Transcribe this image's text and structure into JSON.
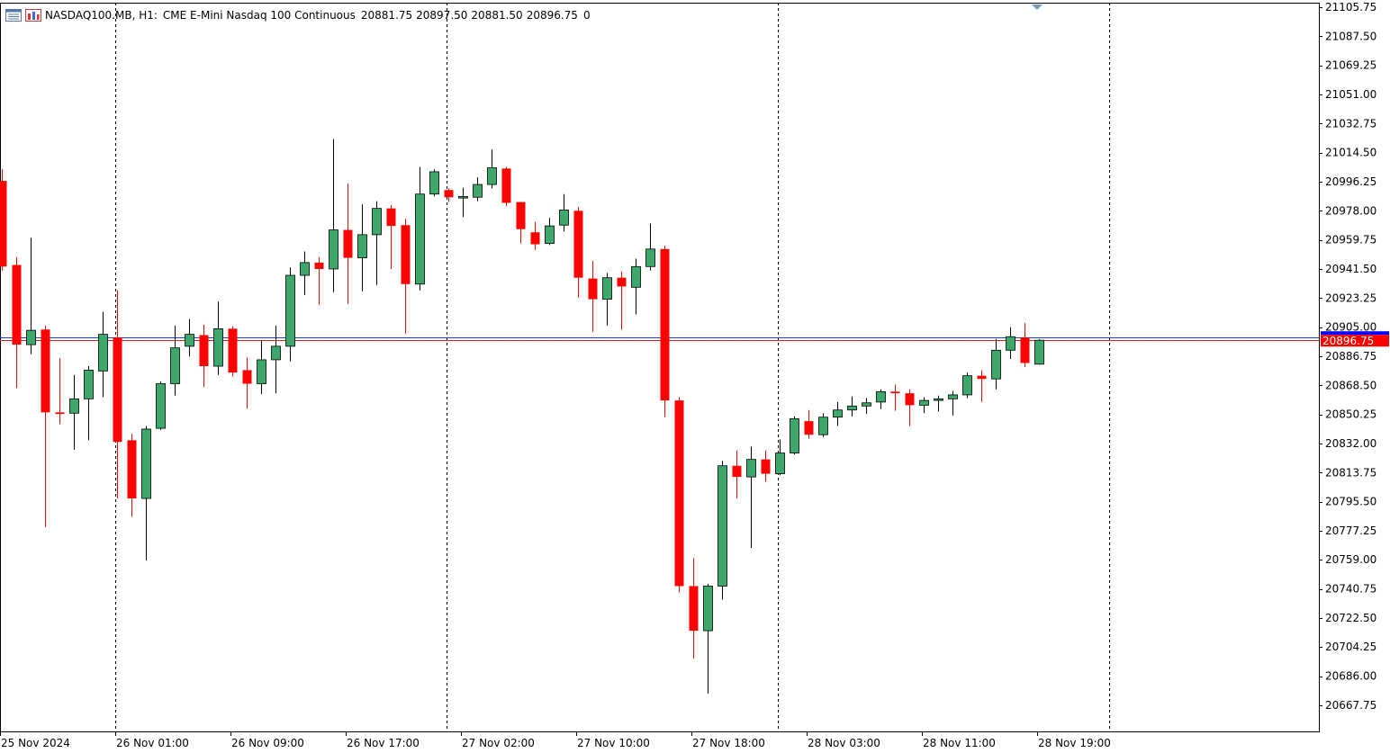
{
  "header": {
    "symbol": "NASDAQ100.MB, H1:",
    "description": "CME E-Mini Nasdaq 100 Continuous",
    "open": "20881.75",
    "high": "20897.50",
    "low": "20881.50",
    "close": "20896.75",
    "volume": "0",
    "icons": [
      "chart-window-icon",
      "symbol-info-icon"
    ]
  },
  "colors": {
    "bull": "#3ca86b",
    "bear": "#ff0000",
    "grid": "#000000",
    "bid_line": "#1f3fd0",
    "ask_line": "#d02020",
    "price_label_bg": "#ff0000",
    "price_label_top": "#0000ff"
  },
  "current_price_label": "20896.75",
  "chart_data": {
    "type": "candlestick",
    "title": "",
    "timeframe": "H1",
    "y_axis": {
      "min": 20650.75,
      "max": 21105.75,
      "tick_labels": [
        "21105.75",
        "21087.50",
        "21069.25",
        "21051.00",
        "21032.75",
        "21014.50",
        "20996.25",
        "20978.00",
        "20959.75",
        "20941.50",
        "20923.25",
        "20905.00",
        "20886.75",
        "20868.50",
        "20850.25",
        "20832.00",
        "20813.75",
        "20795.50",
        "20777.25",
        "20759.00",
        "20740.75",
        "20722.50",
        "20704.25",
        "20686.00",
        "20667.75"
      ]
    },
    "x_axis": {
      "tick_labels": [
        "25 Nov 2024",
        "26 Nov 01:00",
        "26 Nov 09:00",
        "26 Nov 17:00",
        "27 Nov 02:00",
        "27 Nov 10:00",
        "27 Nov 18:00",
        "28 Nov 03:00",
        "28 Nov 11:00",
        "28 Nov 19:00"
      ],
      "day_separators": [
        "26 Nov 00:00",
        "27 Nov 00:00",
        "28 Nov 00:00",
        "29 Nov 00:00"
      ]
    },
    "horizontal_lines": [
      {
        "name": "ask",
        "value": 20898.75
      },
      {
        "name": "bid",
        "value": 20896.75
      }
    ],
    "candles": [
      {
        "o": 20996.75,
        "h": 21004.0,
        "l": 20940.5,
        "c": 20943.0
      },
      {
        "o": 20944.0,
        "h": 20949.0,
        "l": 20866.75,
        "c": 20894.0
      },
      {
        "o": 20894.0,
        "h": 20961.0,
        "l": 20888.0,
        "c": 20903.0
      },
      {
        "o": 20903.5,
        "h": 20906.0,
        "l": 20779.5,
        "c": 20851.5
      },
      {
        "o": 20851.5,
        "h": 20885.5,
        "l": 20844.0,
        "c": 20850.5
      },
      {
        "o": 20851.0,
        "h": 20875.0,
        "l": 20828.0,
        "c": 20860.0
      },
      {
        "o": 20860.0,
        "h": 20880.5,
        "l": 20834.0,
        "c": 20878.0
      },
      {
        "o": 20877.5,
        "h": 20914.5,
        "l": 20861.0,
        "c": 20900.5
      },
      {
        "o": 20898.5,
        "h": 20928.0,
        "l": 20797.5,
        "c": 20833.0
      },
      {
        "o": 20834.0,
        "h": 20838.0,
        "l": 20786.0,
        "c": 20797.5
      },
      {
        "o": 20797.5,
        "h": 20843.0,
        "l": 20758.5,
        "c": 20841.0
      },
      {
        "o": 20841.5,
        "h": 20871.0,
        "l": 20840.5,
        "c": 20869.5
      },
      {
        "o": 20869.5,
        "h": 20906.0,
        "l": 20862.0,
        "c": 20892.0
      },
      {
        "o": 20893.0,
        "h": 20910.0,
        "l": 20886.5,
        "c": 20900.5
      },
      {
        "o": 20900.0,
        "h": 20906.5,
        "l": 20867.5,
        "c": 20880.5
      },
      {
        "o": 20880.5,
        "h": 20921.0,
        "l": 20875.0,
        "c": 20904.0
      },
      {
        "o": 20904.0,
        "h": 20905.5,
        "l": 20874.0,
        "c": 20876.5
      },
      {
        "o": 20878.0,
        "h": 20886.0,
        "l": 20854.0,
        "c": 20869.5
      },
      {
        "o": 20869.5,
        "h": 20896.5,
        "l": 20863.0,
        "c": 20884.5
      },
      {
        "o": 20884.5,
        "h": 20906.0,
        "l": 20863.5,
        "c": 20893.0
      },
      {
        "o": 20893.0,
        "h": 20942.5,
        "l": 20883.5,
        "c": 20937.5
      },
      {
        "o": 20937.5,
        "h": 20952.5,
        "l": 20925.0,
        "c": 20945.5
      },
      {
        "o": 20945.5,
        "h": 20949.0,
        "l": 20919.0,
        "c": 20941.5
      },
      {
        "o": 20941.5,
        "h": 21023.0,
        "l": 20927.0,
        "c": 20966.0
      },
      {
        "o": 20966.0,
        "h": 20995.0,
        "l": 20919.5,
        "c": 20948.5
      },
      {
        "o": 20948.5,
        "h": 20982.0,
        "l": 20927.5,
        "c": 20963.0
      },
      {
        "o": 20963.0,
        "h": 20984.0,
        "l": 20931.5,
        "c": 20979.5
      },
      {
        "o": 20979.5,
        "h": 20981.5,
        "l": 20941.5,
        "c": 20968.5
      },
      {
        "o": 20969.0,
        "h": 20973.0,
        "l": 20901.0,
        "c": 20932.0
      },
      {
        "o": 20932.0,
        "h": 21005.5,
        "l": 20928.0,
        "c": 20988.5
      },
      {
        "o": 20988.5,
        "h": 21004.0,
        "l": 20987.0,
        "c": 21002.5
      },
      {
        "o": 20991.0,
        "h": 20992.0,
        "l": 20983.5,
        "c": 20986.5
      },
      {
        "o": 20986.0,
        "h": 20992.5,
        "l": 20974.0,
        "c": 20987.0
      },
      {
        "o": 20986.5,
        "h": 20999.0,
        "l": 20984.0,
        "c": 20994.5
      },
      {
        "o": 20994.5,
        "h": 21016.5,
        "l": 20992.0,
        "c": 21005.0
      },
      {
        "o": 21004.5,
        "h": 21005.5,
        "l": 20981.0,
        "c": 20983.0
      },
      {
        "o": 20983.5,
        "h": 20983.5,
        "l": 20957.5,
        "c": 20966.5
      },
      {
        "o": 20964.5,
        "h": 20971.0,
        "l": 20953.5,
        "c": 20957.0
      },
      {
        "o": 20957.5,
        "h": 20973.5,
        "l": 20956.5,
        "c": 20968.5
      },
      {
        "o": 20969.0,
        "h": 20988.5,
        "l": 20965.0,
        "c": 20978.5
      },
      {
        "o": 20978.0,
        "h": 20980.5,
        "l": 20923.5,
        "c": 20936.0
      },
      {
        "o": 20935.5,
        "h": 20946.5,
        "l": 20902.0,
        "c": 20922.5
      },
      {
        "o": 20922.5,
        "h": 20939.0,
        "l": 20906.0,
        "c": 20936.0
      },
      {
        "o": 20936.0,
        "h": 20940.0,
        "l": 20903.5,
        "c": 20930.5
      },
      {
        "o": 20930.0,
        "h": 20948.0,
        "l": 20913.0,
        "c": 20943.0
      },
      {
        "o": 20943.0,
        "h": 20970.0,
        "l": 20940.5,
        "c": 20954.0
      },
      {
        "o": 20954.0,
        "h": 20956.0,
        "l": 20848.5,
        "c": 20859.0
      },
      {
        "o": 20859.0,
        "h": 20861.0,
        "l": 20738.5,
        "c": 20742.5
      },
      {
        "o": 20742.5,
        "h": 20760.0,
        "l": 20697.0,
        "c": 20714.5
      },
      {
        "o": 20714.5,
        "h": 20744.0,
        "l": 20675.0,
        "c": 20742.5
      },
      {
        "o": 20742.5,
        "h": 20821.0,
        "l": 20734.0,
        "c": 20818.0
      },
      {
        "o": 20818.0,
        "h": 20827.5,
        "l": 20797.5,
        "c": 20811.0
      },
      {
        "o": 20811.0,
        "h": 20830.0,
        "l": 20766.5,
        "c": 20822.0
      },
      {
        "o": 20822.0,
        "h": 20827.5,
        "l": 20808.0,
        "c": 20813.0
      },
      {
        "o": 20813.0,
        "h": 20834.5,
        "l": 20812.0,
        "c": 20826.0
      },
      {
        "o": 20826.0,
        "h": 20849.0,
        "l": 20825.0,
        "c": 20847.5
      },
      {
        "o": 20846.0,
        "h": 20853.0,
        "l": 20835.0,
        "c": 20837.5
      },
      {
        "o": 20837.5,
        "h": 20851.0,
        "l": 20836.0,
        "c": 20848.5
      },
      {
        "o": 20848.5,
        "h": 20858.0,
        "l": 20843.0,
        "c": 20853.0
      },
      {
        "o": 20853.0,
        "h": 20861.5,
        "l": 20849.0,
        "c": 20855.5
      },
      {
        "o": 20855.5,
        "h": 20860.5,
        "l": 20850.5,
        "c": 20857.5
      },
      {
        "o": 20858.0,
        "h": 20866.0,
        "l": 20853.5,
        "c": 20864.5
      },
      {
        "o": 20864.5,
        "h": 20869.0,
        "l": 20852.5,
        "c": 20863.5
      },
      {
        "o": 20863.5,
        "h": 20866.0,
        "l": 20843.0,
        "c": 20856.0
      },
      {
        "o": 20856.0,
        "h": 20861.0,
        "l": 20851.0,
        "c": 20859.0
      },
      {
        "o": 20859.0,
        "h": 20862.0,
        "l": 20852.0,
        "c": 20860.0
      },
      {
        "o": 20860.0,
        "h": 20865.0,
        "l": 20849.5,
        "c": 20862.5
      },
      {
        "o": 20862.5,
        "h": 20876.5,
        "l": 20860.5,
        "c": 20874.5
      },
      {
        "o": 20874.5,
        "h": 20878.0,
        "l": 20858.0,
        "c": 20872.5
      },
      {
        "o": 20872.5,
        "h": 20897.5,
        "l": 20866.0,
        "c": 20890.5
      },
      {
        "o": 20890.5,
        "h": 20905.0,
        "l": 20885.0,
        "c": 20899.0
      },
      {
        "o": 20898.5,
        "h": 20907.5,
        "l": 20880.0,
        "c": 20882.5
      },
      {
        "o": 20881.75,
        "h": 20897.5,
        "l": 20881.5,
        "c": 20896.75
      }
    ]
  }
}
